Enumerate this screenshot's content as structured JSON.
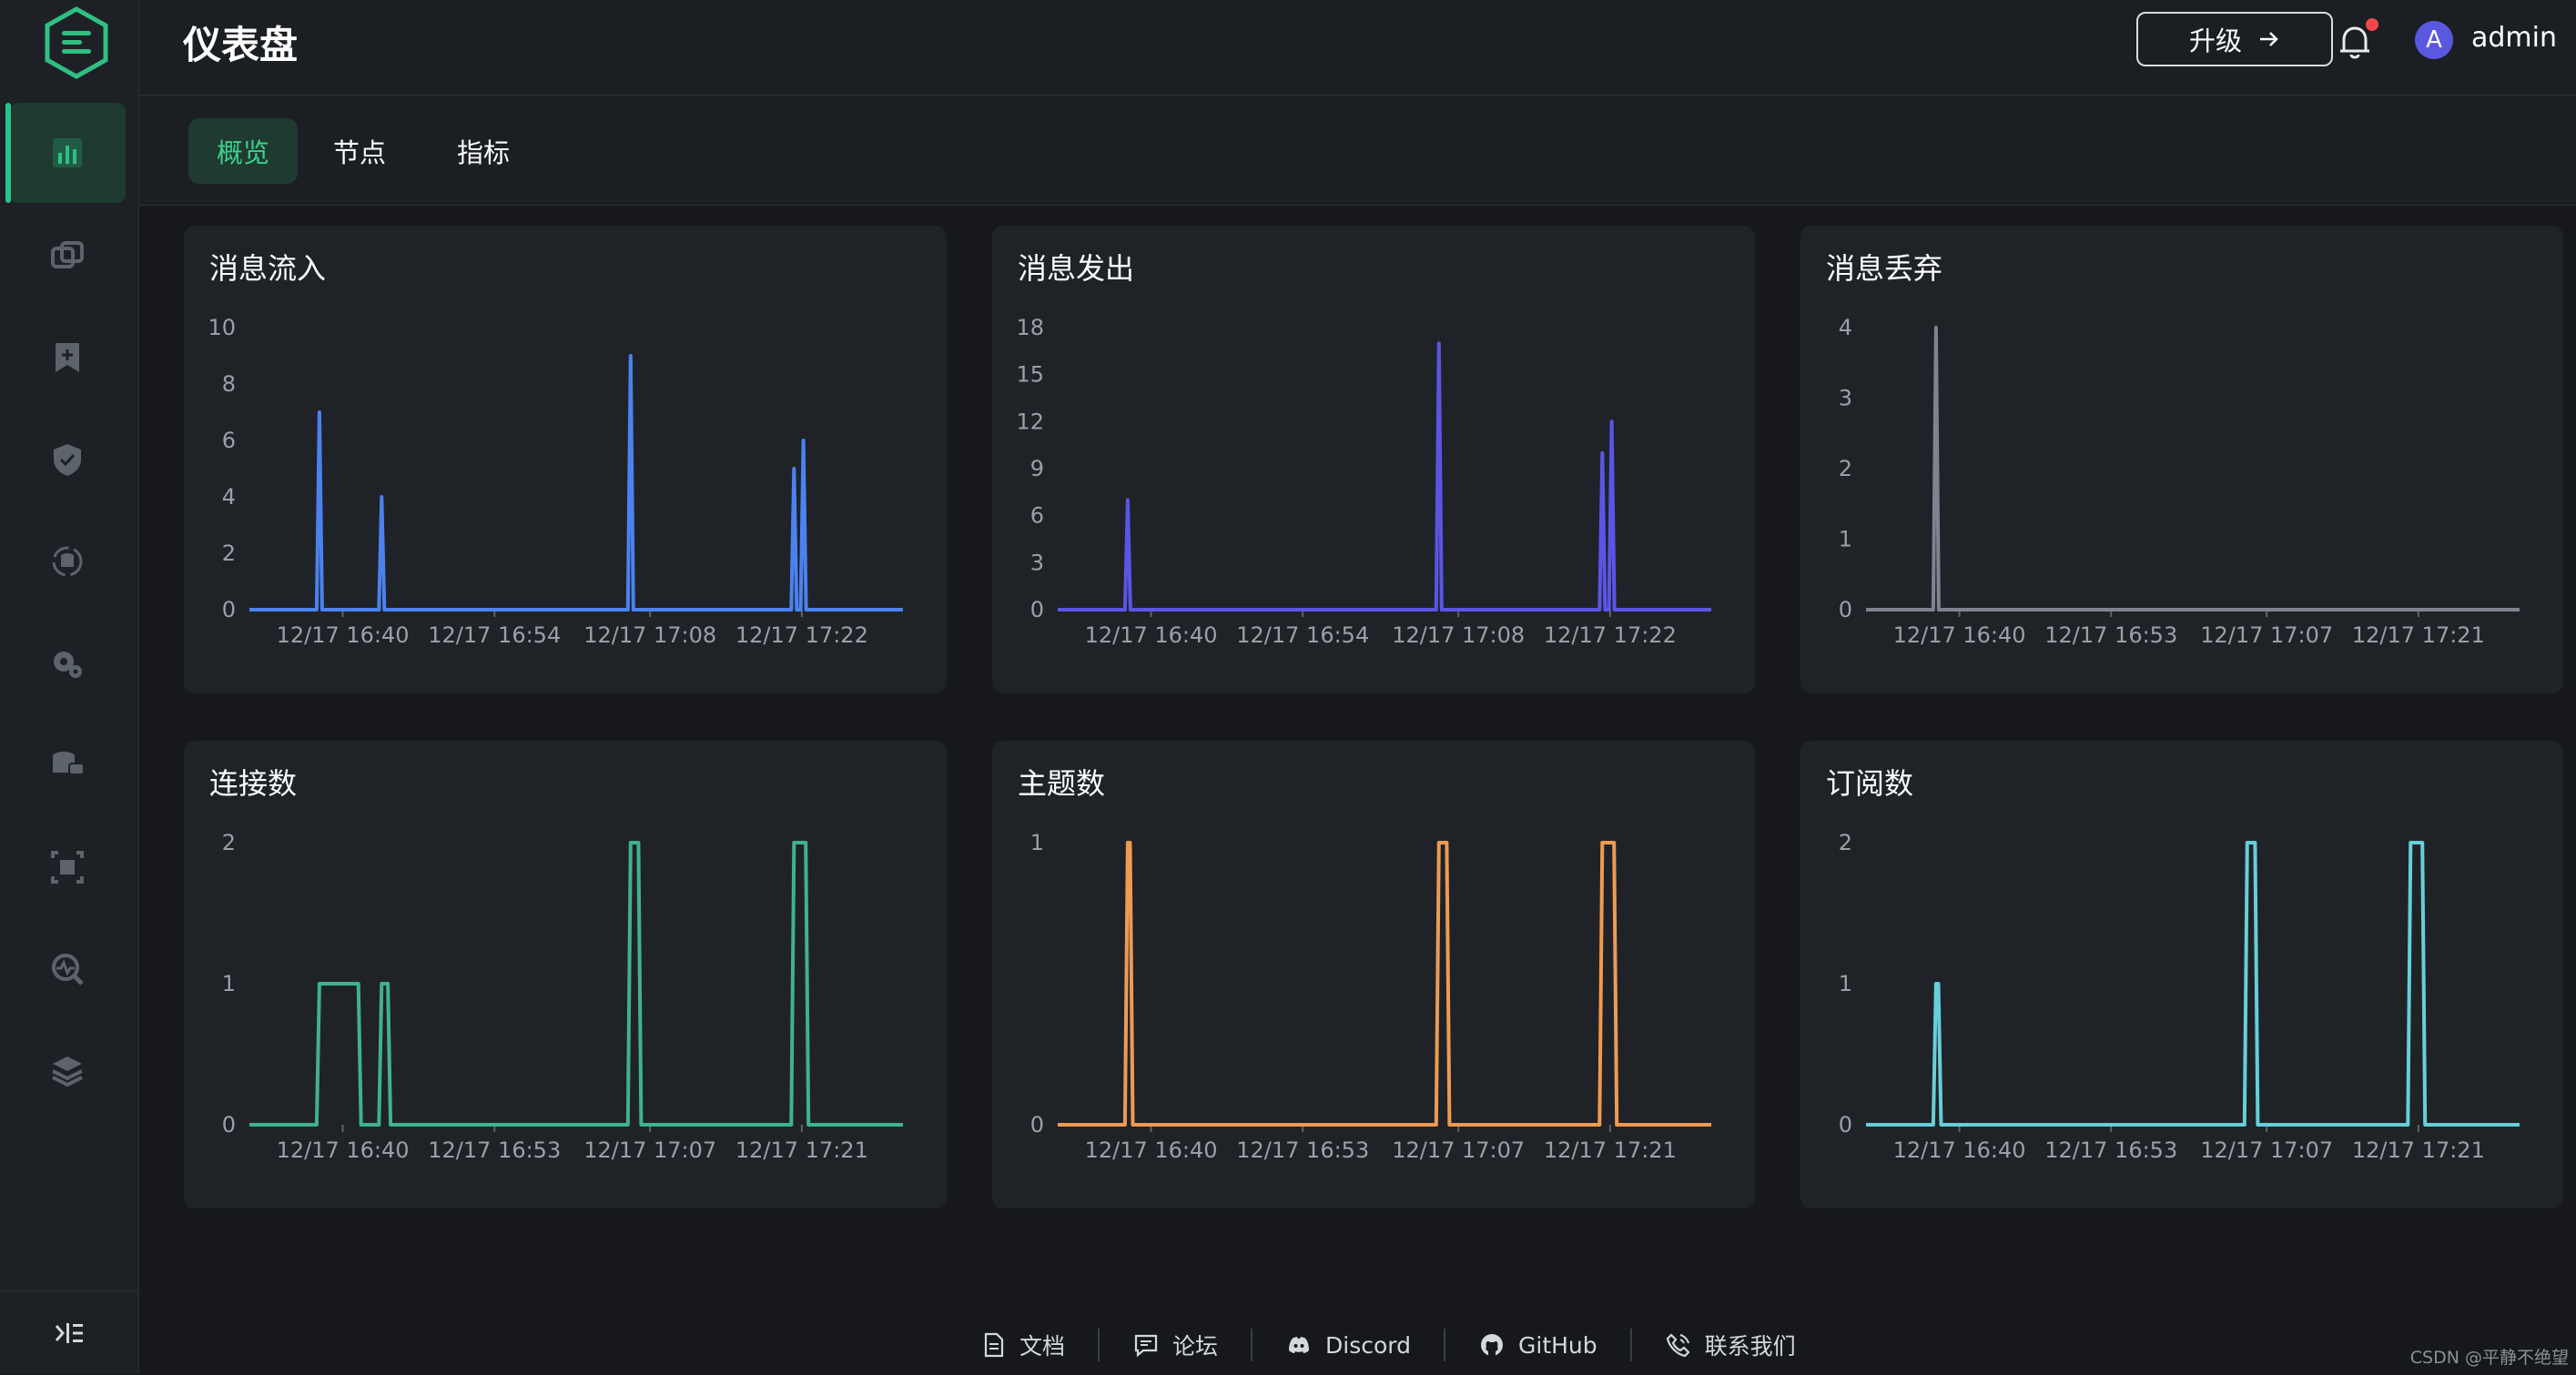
{
  "header": {
    "title": "仪表盘",
    "upgrade_label": "升级",
    "username": "admin",
    "avatar_initial": "A"
  },
  "sidebar": {
    "items": [
      {
        "icon": "dashboard-icon",
        "active": true
      },
      {
        "icon": "clients-icon",
        "active": false
      },
      {
        "icon": "subscriptions-icon",
        "active": false
      },
      {
        "icon": "access-control-icon",
        "active": false
      },
      {
        "icon": "data-integration-icon",
        "active": false
      },
      {
        "icon": "management-icon",
        "active": false
      },
      {
        "icon": "problem-analysis-icon",
        "active": false
      },
      {
        "icon": "extensions-icon",
        "active": false
      },
      {
        "icon": "diagnose-icon",
        "active": false
      },
      {
        "icon": "system-icon",
        "active": false
      }
    ],
    "collapse_icon": "collapse-sidebar-icon"
  },
  "tabs": [
    {
      "label": "概览",
      "active": true
    },
    {
      "label": "节点",
      "active": false
    },
    {
      "label": "指标",
      "active": false
    }
  ],
  "chart_data": [
    {
      "type": "line",
      "title": "消息流入",
      "color": "#4c82f0",
      "ylim": [
        0,
        10
      ],
      "yticks": [
        "0",
        "2",
        "4",
        "6",
        "8",
        "10"
      ],
      "xlim": [
        16.0,
        100.0
      ],
      "xticks": [
        {
          "at": 28,
          "label": "12/17 16:40"
        },
        {
          "at": 47.5,
          "label": "12/17 16:54"
        },
        {
          "at": 67.5,
          "label": "12/17 17:08"
        },
        {
          "at": 87,
          "label": "12/17 17:22"
        }
      ],
      "spikes": [
        {
          "at": 25.0,
          "value": 7
        },
        {
          "at": 33.0,
          "value": 4
        },
        {
          "at": 65.0,
          "value": 9
        },
        {
          "at": 86.0,
          "value": 5
        },
        {
          "at": 87.2,
          "value": 6
        }
      ]
    },
    {
      "type": "line",
      "title": "消息发出",
      "color": "#5b55e6",
      "ylim": [
        0,
        18
      ],
      "yticks": [
        "0",
        "3",
        "6",
        "9",
        "12",
        "15",
        "18"
      ],
      "xlim": [
        16.0,
        100.0
      ],
      "xticks": [
        {
          "at": 28,
          "label": "12/17 16:40"
        },
        {
          "at": 47.5,
          "label": "12/17 16:54"
        },
        {
          "at": 67.5,
          "label": "12/17 17:08"
        },
        {
          "at": 87,
          "label": "12/17 17:22"
        }
      ],
      "spikes": [
        {
          "at": 25.0,
          "value": 7
        },
        {
          "at": 65.0,
          "value": 17
        },
        {
          "at": 86.0,
          "value": 10
        },
        {
          "at": 87.2,
          "value": 12
        }
      ]
    },
    {
      "type": "line",
      "title": "消息丢弃",
      "color": "#7d8490",
      "ylim": [
        0,
        4
      ],
      "yticks": [
        "0",
        "1",
        "2",
        "3",
        "4"
      ],
      "xlim": [
        16.0,
        100.0
      ],
      "xticks": [
        {
          "at": 28,
          "label": "12/17 16:40"
        },
        {
          "at": 47.5,
          "label": "12/17 16:53"
        },
        {
          "at": 67.5,
          "label": "12/17 17:07"
        },
        {
          "at": 87,
          "label": "12/17 17:21"
        }
      ],
      "spikes": [
        {
          "at": 25.0,
          "value": 4
        }
      ]
    },
    {
      "type": "line",
      "title": "连接数",
      "color": "#3fb28f",
      "ylim": [
        0,
        2
      ],
      "yticks": [
        "0",
        "1",
        "2"
      ],
      "xlim": [
        16.0,
        100.0
      ],
      "xticks": [
        {
          "at": 28,
          "label": "12/17 16:40"
        },
        {
          "at": 47.5,
          "label": "12/17 16:53"
        },
        {
          "at": 67.5,
          "label": "12/17 17:07"
        },
        {
          "at": 87,
          "label": "12/17 17:21"
        }
      ],
      "plateaus": [
        {
          "from": 25.0,
          "to": 30.0,
          "value": 1
        },
        {
          "from": 33.0,
          "to": 33.8,
          "value": 1
        },
        {
          "from": 65.0,
          "to": 66.0,
          "value": 2
        },
        {
          "from": 86.0,
          "to": 87.5,
          "value": 2
        }
      ]
    },
    {
      "type": "line",
      "title": "主题数",
      "color": "#ef9a52",
      "ylim": [
        0,
        1
      ],
      "yticks": [
        "0",
        "1"
      ],
      "xlim": [
        16.0,
        100.0
      ],
      "xticks": [
        {
          "at": 28,
          "label": "12/17 16:40"
        },
        {
          "at": 47.5,
          "label": "12/17 16:53"
        },
        {
          "at": 67.5,
          "label": "12/17 17:07"
        },
        {
          "at": 87,
          "label": "12/17 17:21"
        }
      ],
      "plateaus": [
        {
          "from": 25.0,
          "to": 25.3,
          "value": 1
        },
        {
          "from": 65.0,
          "to": 66.0,
          "value": 1
        },
        {
          "from": 86.0,
          "to": 87.5,
          "value": 1
        }
      ]
    },
    {
      "type": "line",
      "title": "订阅数",
      "color": "#66cfd8",
      "ylim": [
        0,
        2
      ],
      "yticks": [
        "0",
        "1",
        "2"
      ],
      "xlim": [
        16.0,
        100.0
      ],
      "xticks": [
        {
          "at": 28,
          "label": "12/17 16:40"
        },
        {
          "at": 47.5,
          "label": "12/17 16:53"
        },
        {
          "at": 67.5,
          "label": "12/17 17:07"
        },
        {
          "at": 87,
          "label": "12/17 17:21"
        }
      ],
      "plateaus": [
        {
          "from": 25.0,
          "to": 25.3,
          "value": 1
        },
        {
          "from": 65.0,
          "to": 66.0,
          "value": 2
        },
        {
          "from": 86.0,
          "to": 87.5,
          "value": 2
        }
      ]
    }
  ],
  "footer": {
    "links": [
      {
        "label": "文档",
        "icon": "document-icon"
      },
      {
        "label": "论坛",
        "icon": "forum-icon"
      },
      {
        "label": "Discord",
        "icon": "discord-icon"
      },
      {
        "label": "GitHub",
        "icon": "github-icon"
      },
      {
        "label": "联系我们",
        "icon": "contact-icon"
      }
    ]
  },
  "watermark": "CSDN @平静不绝望"
}
